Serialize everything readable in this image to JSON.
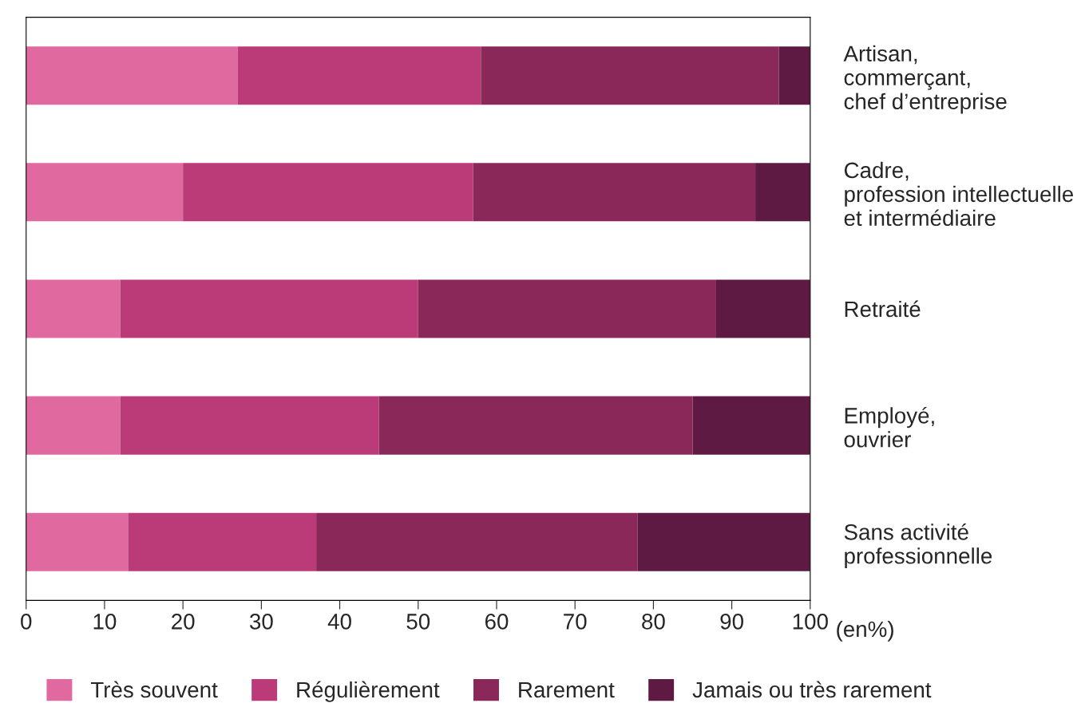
{
  "chart_data": {
    "type": "bar",
    "orientation": "horizontal",
    "stacked": true,
    "categories": [
      "Artisan,\ncommerçant,\nchef d’entreprise",
      "Cadre,\nprofession intellectuelle\net intermédiaire",
      "Retraité",
      "Employé,\nouvrier",
      "Sans activité\nprofessionnelle"
    ],
    "series": [
      {
        "name": "Très souvent",
        "color": "#e06aa0",
        "values": [
          27,
          20,
          12,
          12,
          13
        ]
      },
      {
        "name": "Régulièrement",
        "color": "#bb3b78",
        "values": [
          31,
          37,
          38,
          33,
          24
        ]
      },
      {
        "name": "Rarement",
        "color": "#8a2859",
        "values": [
          38,
          36,
          38,
          40,
          41
        ]
      },
      {
        "name": "Jamais ou très rarement",
        "color": "#5e1a42",
        "values": [
          4,
          7,
          12,
          15,
          22
        ]
      }
    ],
    "xlabel": "(en%)",
    "xlim": [
      0,
      100
    ],
    "xticks": [
      0,
      10,
      20,
      30,
      40,
      50,
      60,
      70,
      80,
      90,
      100
    ],
    "grid": false,
    "legend": "bottom"
  }
}
